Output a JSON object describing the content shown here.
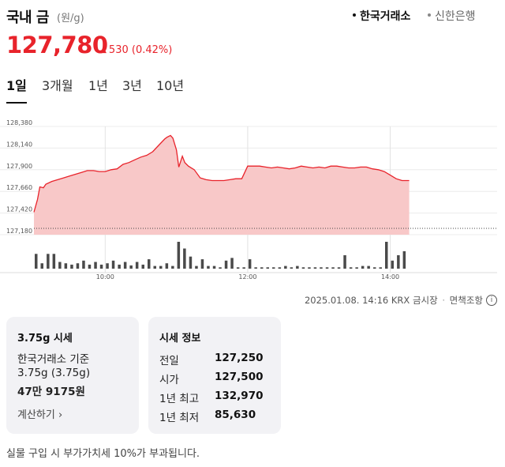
{
  "header": {
    "title": "국내 금",
    "unit": "(원/g)",
    "sources": [
      {
        "label": "한국거래소",
        "active": true
      },
      {
        "label": "신한은행",
        "active": false
      }
    ]
  },
  "quote": {
    "price": "127,780",
    "change_arrow": "▲",
    "change": "530 (0.42%)",
    "accent_color": "#e8232b"
  },
  "tabs": [
    {
      "label": "1일",
      "active": true
    },
    {
      "label": "3개월",
      "active": false
    },
    {
      "label": "1년",
      "active": false
    },
    {
      "label": "3년",
      "active": false
    },
    {
      "label": "10년",
      "active": false
    }
  ],
  "chart_data": {
    "type": "area",
    "x_start": "09:00",
    "x_end": "15:30",
    "y_ticks": [
      "128,380",
      "128,140",
      "127,900",
      "127,660",
      "127,420",
      "127,180"
    ],
    "ylim": [
      127180,
      128380
    ],
    "x_ticks": [
      "10:00",
      "12:00",
      "14:00"
    ],
    "reference_line": 127250,
    "line_color": "#e8232b",
    "fill_color": "#f8c8c8",
    "series": [
      {
        "x": [
          "09:00",
          "09:03",
          "09:05",
          "09:08",
          "09:10",
          "09:15",
          "09:20",
          "09:25",
          "09:30",
          "09:35",
          "09:40",
          "09:45",
          "09:50",
          "09:55",
          "10:00",
          "10:05",
          "10:10",
          "10:15",
          "10:20",
          "10:25",
          "10:30",
          "10:35",
          "10:40",
          "10:45",
          "10:50",
          "10:52",
          "10:55",
          "10:57",
          "11:00",
          "11:02",
          "11:05",
          "11:07",
          "11:10",
          "11:15",
          "11:20",
          "11:25",
          "11:30",
          "11:35",
          "11:40",
          "11:45",
          "11:50",
          "11:55",
          "12:00",
          "12:05",
          "12:10",
          "12:15",
          "12:20",
          "12:25",
          "12:30",
          "12:35",
          "12:40",
          "12:45",
          "12:50",
          "12:55",
          "13:00",
          "13:05",
          "13:10",
          "13:15",
          "13:20",
          "13:25",
          "13:30",
          "13:35",
          "13:40",
          "13:45",
          "13:50",
          "13:55",
          "14:00",
          "14:05",
          "14:10",
          "14:16"
        ],
        "values": [
          127430,
          127570,
          127710,
          127700,
          127740,
          127770,
          127790,
          127810,
          127830,
          127850,
          127870,
          127890,
          127890,
          127880,
          127880,
          127900,
          127910,
          127960,
          127980,
          128010,
          128040,
          128060,
          128100,
          128170,
          128240,
          128260,
          128280,
          128250,
          128120,
          127930,
          128050,
          127980,
          127940,
          127900,
          127810,
          127790,
          127780,
          127780,
          127780,
          127790,
          127800,
          127800,
          127940,
          127940,
          127940,
          127930,
          127920,
          127930,
          127920,
          127910,
          127920,
          127940,
          127930,
          127920,
          127930,
          127920,
          127940,
          127940,
          127930,
          127920,
          127920,
          127930,
          127930,
          127910,
          127900,
          127880,
          127840,
          127800,
          127780,
          127780
        ]
      }
    ],
    "volume": {
      "x": [
        "09:00",
        "09:05",
        "09:10",
        "09:15",
        "09:20",
        "09:25",
        "09:30",
        "09:35",
        "09:40",
        "09:45",
        "09:50",
        "09:55",
        "10:00",
        "10:05",
        "10:10",
        "10:15",
        "10:20",
        "10:25",
        "10:30",
        "10:35",
        "10:40",
        "10:45",
        "10:50",
        "10:55",
        "11:00",
        "11:05",
        "11:10",
        "11:15",
        "11:20",
        "11:25",
        "11:30",
        "11:35",
        "11:40",
        "11:45",
        "11:50",
        "11:55",
        "12:00",
        "12:05",
        "12:10",
        "12:15",
        "12:20",
        "12:25",
        "12:30",
        "12:35",
        "12:40",
        "12:45",
        "12:50",
        "12:55",
        "13:00",
        "13:05",
        "13:10",
        "13:15",
        "13:20",
        "13:25",
        "13:30",
        "13:35",
        "13:40",
        "13:45",
        "13:50",
        "13:55",
        "14:00",
        "14:05",
        "14:10"
      ],
      "values": [
        0.55,
        0.2,
        0.55,
        0.55,
        0.25,
        0.2,
        0.15,
        0.2,
        0.3,
        0.15,
        0.25,
        0.15,
        0.2,
        0.3,
        0.15,
        0.25,
        0.12,
        0.25,
        0.15,
        0.35,
        0.1,
        0.1,
        0.2,
        0.1,
        1.0,
        0.75,
        0.45,
        0.1,
        0.35,
        0.1,
        0.1,
        0.05,
        0.3,
        0.4,
        0.05,
        0.05,
        0.35,
        0.05,
        0.05,
        0.05,
        0.05,
        0.05,
        0.1,
        0.05,
        0.1,
        0.05,
        0.05,
        0.05,
        0.05,
        0.05,
        0.05,
        0.05,
        0.5,
        0.05,
        0.05,
        0.1,
        0.1,
        0.05,
        0.05,
        1.0,
        0.3,
        0.5,
        0.65
      ]
    }
  },
  "updated": {
    "text": "2025.01.08. 14:16 KRX 금시장",
    "sep": "·",
    "disclaimer": "면책조항",
    "info": "i"
  },
  "card_weight": {
    "title": "3.75g 시세",
    "line1": "한국거래소 기준",
    "line2": "3.75g (3.75g)",
    "price": "47만 9175원",
    "calc_label": "계산하기"
  },
  "card_info": {
    "title": "시세 정보",
    "rows": [
      {
        "label": "전일",
        "value": "127,250"
      },
      {
        "label": "시가",
        "value": "127,500"
      },
      {
        "label": "1년 최고",
        "value": "132,970"
      },
      {
        "label": "1년 최저",
        "value": "85,630"
      }
    ]
  },
  "note": "실물 구입 시 부가가치세 10%가 부과됩니다."
}
